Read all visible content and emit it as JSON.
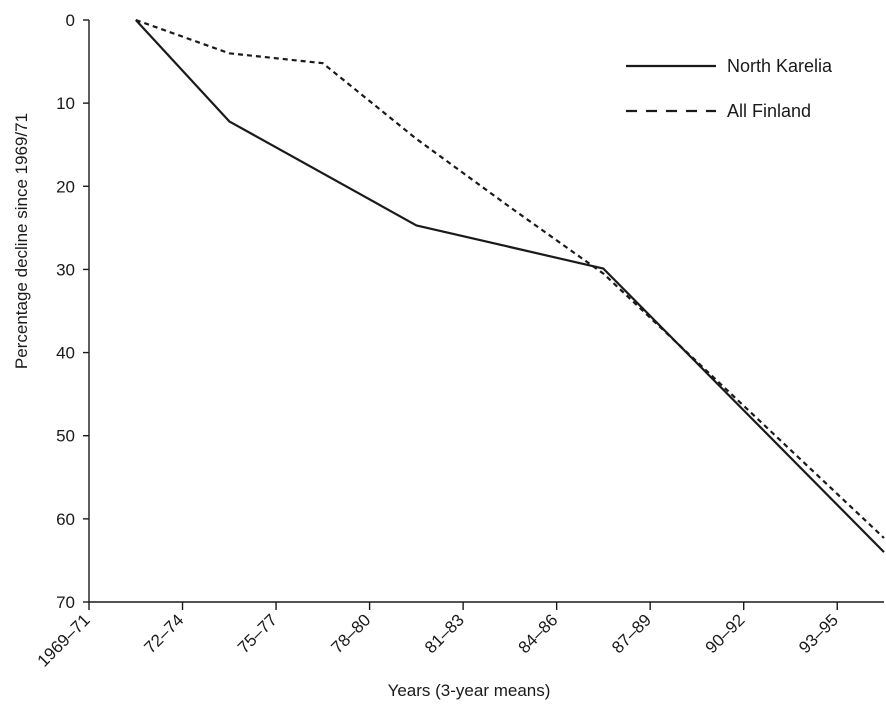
{
  "chart_data": {
    "type": "line",
    "title": "",
    "xlabel": "Years (3-year means)",
    "ylabel": "Percentage decline since 1969/71",
    "categories": [
      "1969–71",
      "72–74",
      "75–77",
      "78–80",
      "81–83",
      "84–86",
      "87–89",
      "90–92",
      "93–95"
    ],
    "yticks": [
      0,
      10,
      20,
      30,
      40,
      50,
      60,
      70
    ],
    "ylim": [
      0,
      70
    ],
    "y_inverted": true,
    "x_range": [
      0,
      8.5
    ],
    "grid": false,
    "legend_position": "top-right",
    "series": [
      {
        "name": "North Karelia",
        "style": "solid",
        "x": [
          0.5,
          1.5,
          3.5,
          5.5,
          8.5
        ],
        "values": [
          0,
          12.2,
          24.7,
          29.9,
          64
        ]
      },
      {
        "name": "All Finland",
        "style": "dashed",
        "x": [
          0.5,
          1.5,
          2.5,
          3.5,
          4.5,
          5.5,
          8.5
        ],
        "values": [
          0,
          4,
          5.2,
          14.3,
          22.5,
          30.5,
          62.3
        ]
      }
    ]
  }
}
